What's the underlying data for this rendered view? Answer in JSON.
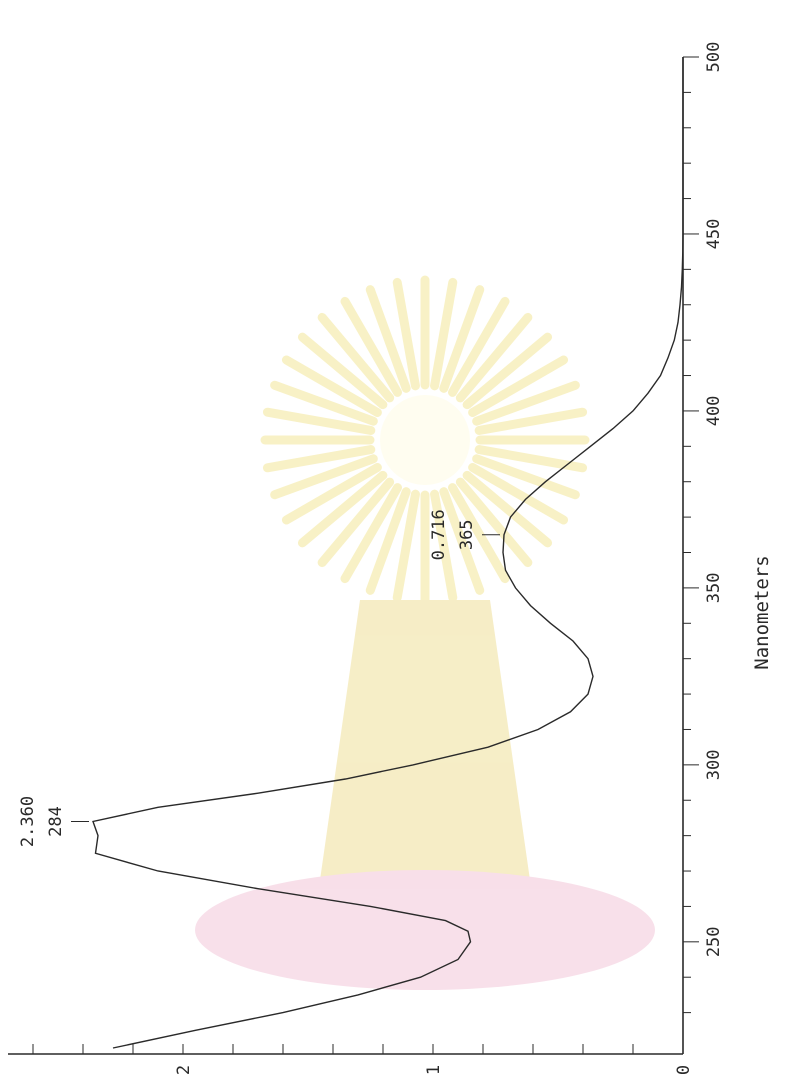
{
  "chart_data": {
    "type": "line",
    "xlabel": "Nanometers",
    "ylabel": "",
    "xlim": [
      220,
      500
    ],
    "ylim": [
      0,
      2.8
    ],
    "x_ticks": [
      "250",
      "300",
      "350",
      "400",
      "450",
      "500"
    ],
    "y_ticks": [
      "0",
      "1",
      "2"
    ],
    "series": [
      {
        "x": [
          220,
          225,
          230,
          235,
          240,
          245,
          250,
          253,
          256,
          260,
          265,
          270,
          275,
          280,
          284,
          288,
          292,
          296,
          300,
          305,
          310,
          315,
          320,
          325,
          330,
          335,
          340,
          345,
          350,
          355,
          360,
          365,
          370,
          375,
          380,
          385,
          390,
          395,
          400,
          405,
          410,
          415,
          420,
          425,
          430,
          435,
          440,
          445,
          450,
          460,
          470,
          480,
          490,
          500
        ],
        "y": [
          2.28,
          1.95,
          1.6,
          1.3,
          1.05,
          0.9,
          0.85,
          0.86,
          0.95,
          1.25,
          1.7,
          2.1,
          2.35,
          2.34,
          2.36,
          2.1,
          1.7,
          1.35,
          1.08,
          0.78,
          0.58,
          0.45,
          0.38,
          0.36,
          0.38,
          0.44,
          0.53,
          0.61,
          0.67,
          0.71,
          0.72,
          0.716,
          0.69,
          0.63,
          0.55,
          0.46,
          0.37,
          0.28,
          0.2,
          0.14,
          0.09,
          0.06,
          0.035,
          0.02,
          0.012,
          0.006,
          0.003,
          0.001,
          0,
          0,
          0,
          0,
          0,
          0
        ]
      }
    ],
    "peak_labels": [
      {
        "x": 284,
        "y": 2.36,
        "value_label": "2.360",
        "wavelength_label": "284"
      },
      {
        "x": 365,
        "y": 0.716,
        "value_label": "0.716",
        "wavelength_label": "365"
      }
    ]
  }
}
